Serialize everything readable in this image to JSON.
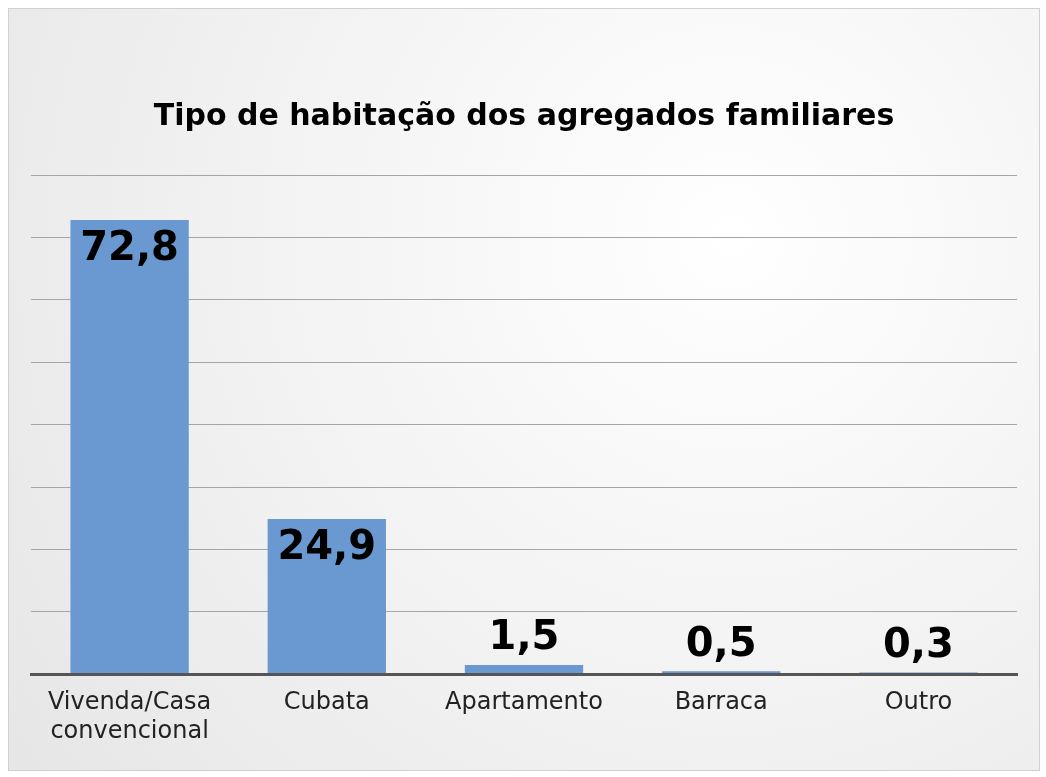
{
  "chart_data": {
    "type": "bar",
    "title": "Tipo de habitação dos agregados familiares",
    "categories": [
      "Vivenda/Casa convencional",
      "Cubata",
      "Apartamento",
      "Barraca",
      "Outro"
    ],
    "values": [
      72.8,
      24.9,
      1.5,
      0.5,
      0.3
    ],
    "value_labels": [
      "72,8",
      "24,9",
      "1,5",
      "0,5",
      "0,3"
    ],
    "color": "#6a98d0",
    "grid": "y",
    "legend": false,
    "tick_labels": "x"
  }
}
